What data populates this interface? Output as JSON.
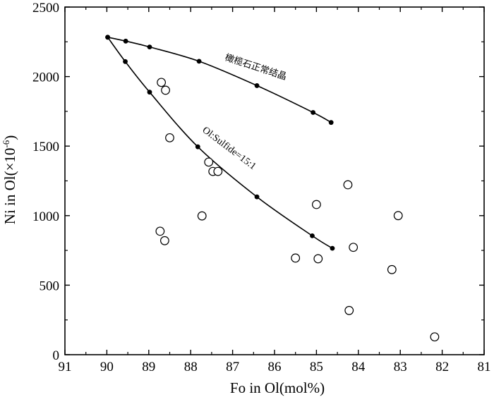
{
  "chart_data": {
    "type": "scatter",
    "title": "",
    "xlabel": "Fo in Ol(mol%)",
    "ylabel_main": "Ni in Ol(×10",
    "ylabel_sup": "-6",
    "ylabel_end": ")",
    "xlim": [
      91,
      81
    ],
    "ylim": [
      0,
      2500
    ],
    "x_reversed": true,
    "x_ticks": [
      "91",
      "90",
      "89",
      "88",
      "87",
      "86",
      "85",
      "84",
      "83",
      "82",
      "81"
    ],
    "y_ticks": [
      "0",
      "500",
      "1000",
      "1500",
      "2000",
      "2500"
    ],
    "grid": false,
    "series": [
      {
        "name": "橄榄石正常结晶",
        "marker": "filled-circle",
        "line": true,
        "points": [
          [
            89.98,
            2283
          ],
          [
            89.55,
            2255
          ],
          [
            88.98,
            2213
          ],
          [
            87.8,
            2110
          ],
          [
            86.42,
            1935
          ],
          [
            85.08,
            1742
          ],
          [
            84.65,
            1670
          ]
        ]
      },
      {
        "name": "Ol:Sulfide=15:1",
        "marker": "filled-circle",
        "line": true,
        "points": [
          [
            89.98,
            2283
          ],
          [
            89.56,
            2108
          ],
          [
            88.98,
            1888
          ],
          [
            87.83,
            1495
          ],
          [
            86.42,
            1135
          ],
          [
            85.1,
            855
          ],
          [
            84.62,
            765
          ]
        ]
      },
      {
        "name": "",
        "marker": "open-circle",
        "line": false,
        "points": [
          [
            88.7,
            1958
          ],
          [
            88.6,
            1902
          ],
          [
            88.5,
            1560
          ],
          [
            87.57,
            1385
          ],
          [
            87.47,
            1318
          ],
          [
            87.35,
            1318
          ],
          [
            87.73,
            998
          ],
          [
            88.73,
            888
          ],
          [
            88.62,
            820
          ],
          [
            85.5,
            695
          ],
          [
            84.96,
            690
          ],
          [
            85.0,
            1080
          ],
          [
            84.25,
            1222
          ],
          [
            84.12,
            772
          ],
          [
            83.05,
            1000
          ],
          [
            83.2,
            612
          ],
          [
            84.22,
            318
          ],
          [
            82.18,
            128
          ]
        ]
      }
    ]
  }
}
